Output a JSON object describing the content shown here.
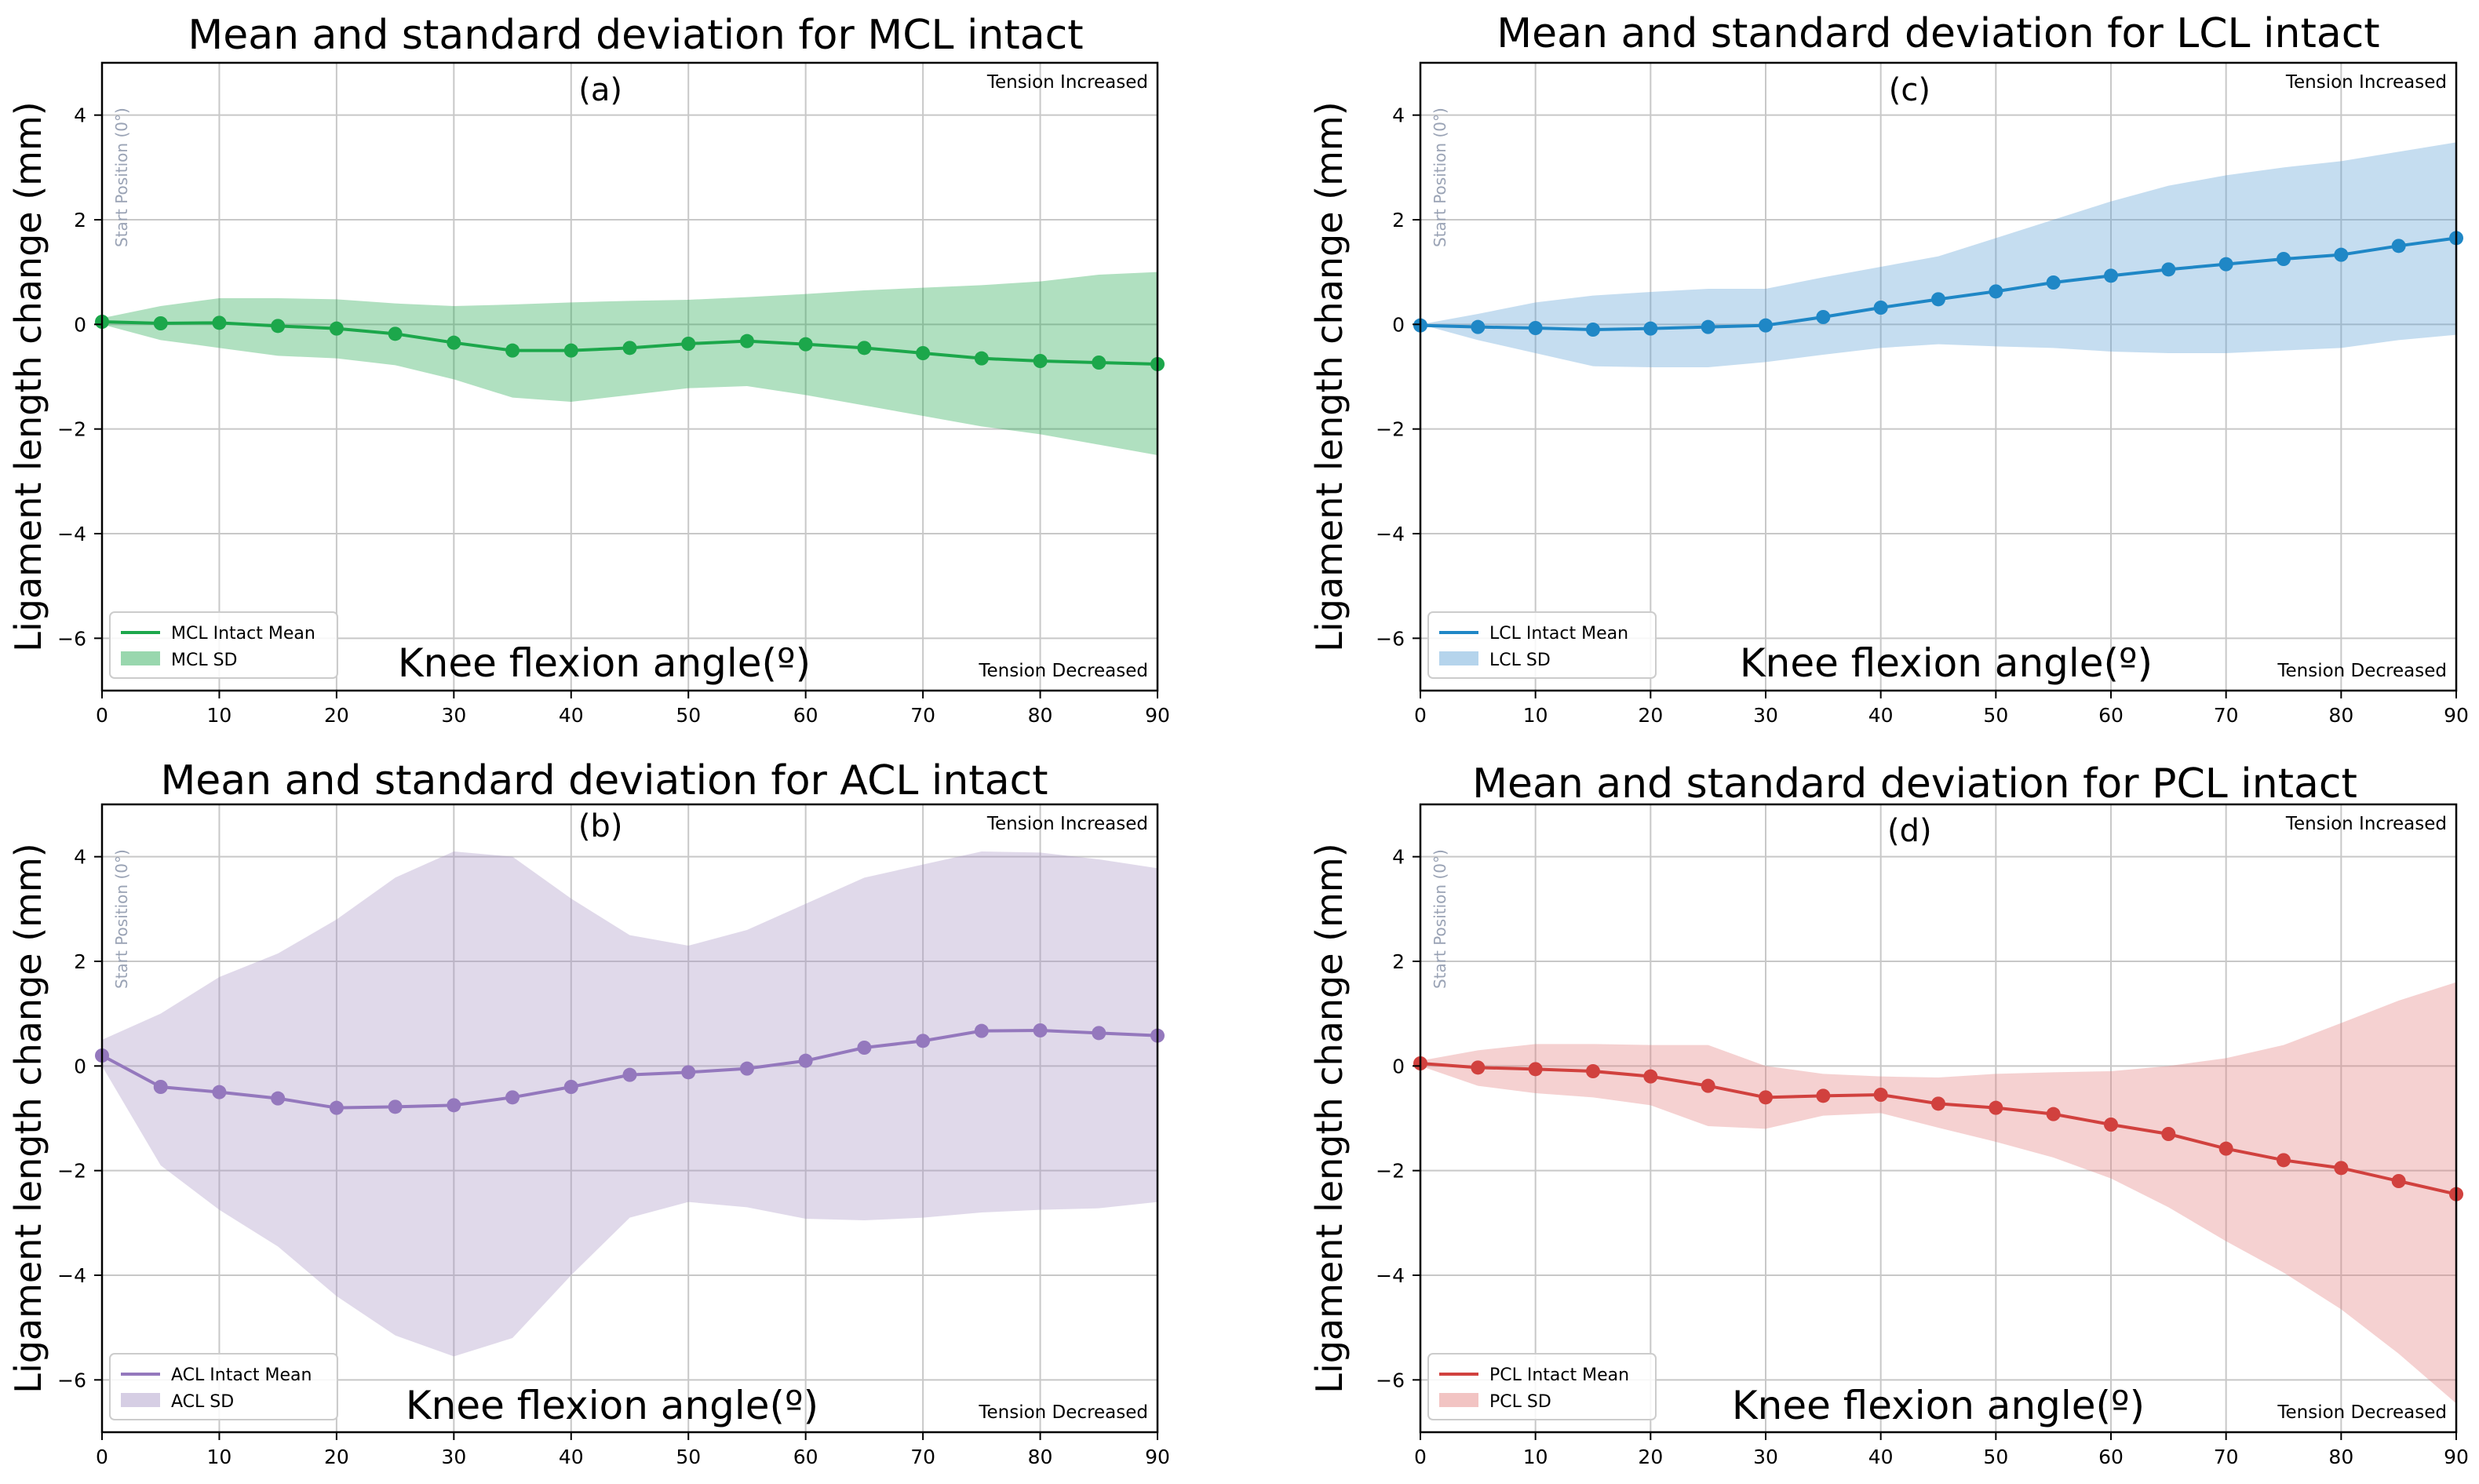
{
  "chart_data": [
    {
      "type": "line",
      "panel": "(a)",
      "title": "Mean and standard deviation for MCL intact",
      "xlabel": "Knee flexion angle(º)",
      "ylabel": "Ligament length change (mm)",
      "xlim": [
        0,
        90
      ],
      "ylim": [
        -7,
        5
      ],
      "xticks": [
        0,
        10,
        20,
        30,
        40,
        50,
        60,
        70,
        80,
        90
      ],
      "yticks": [
        -6,
        -4,
        -2,
        0,
        2,
        4
      ],
      "tick_labels_y": [
        "−6",
        "−4",
        "−2",
        "0",
        "2",
        "4"
      ],
      "color": "#1ca74b",
      "band_color": "#1ca74b",
      "start_label": "Start Position (0°)",
      "tension_increased": "Tension Increased",
      "tension_decreased": "Tension Decreased",
      "legend": {
        "mean": "MCL Intact Mean",
        "sd": "MCL SD",
        "position": "lower-left"
      },
      "x": [
        0,
        5,
        10,
        15,
        20,
        25,
        30,
        35,
        40,
        45,
        50,
        55,
        60,
        65,
        70,
        75,
        80,
        85,
        90
      ],
      "mean": [
        0.05,
        0.02,
        0.03,
        -0.03,
        -0.08,
        -0.18,
        -0.35,
        -0.5,
        -0.5,
        -0.45,
        -0.37,
        -0.32,
        -0.38,
        -0.45,
        -0.55,
        -0.65,
        -0.7,
        -0.73,
        -0.76
      ],
      "upper": [
        0.12,
        0.35,
        0.5,
        0.5,
        0.48,
        0.4,
        0.35,
        0.38,
        0.42,
        0.45,
        0.47,
        0.52,
        0.58,
        0.65,
        0.7,
        0.75,
        0.82,
        0.95,
        1.0
      ],
      "lower": [
        0.0,
        -0.3,
        -0.45,
        -0.6,
        -0.65,
        -0.78,
        -1.05,
        -1.4,
        -1.48,
        -1.35,
        -1.22,
        -1.18,
        -1.35,
        -1.55,
        -1.75,
        -1.95,
        -2.1,
        -2.3,
        -2.5
      ]
    },
    {
      "type": "line",
      "panel": "(c)",
      "title": "Mean and standard deviation for LCL intact",
      "xlabel": "Knee flexion angle(º)",
      "ylabel": "Ligament length change (mm)",
      "xlim": [
        0,
        90
      ],
      "ylim": [
        -7,
        5
      ],
      "xticks": [
        0,
        10,
        20,
        30,
        40,
        50,
        60,
        70,
        80,
        90
      ],
      "yticks": [
        -6,
        -4,
        -2,
        0,
        2,
        4
      ],
      "tick_labels_y": [
        "−6",
        "−4",
        "−2",
        "0",
        "2",
        "4"
      ],
      "color": "#1f87c6",
      "band_color": "#5a9fd4",
      "start_label": "Start Position (0°)",
      "tension_increased": "Tension Increased",
      "tension_decreased": "Tension Decreased",
      "legend": {
        "mean": "LCL Intact Mean",
        "sd": "LCL SD",
        "position": "lower-left"
      },
      "x": [
        0,
        5,
        10,
        15,
        20,
        25,
        30,
        35,
        40,
        45,
        50,
        55,
        60,
        65,
        70,
        75,
        80,
        85,
        90
      ],
      "mean": [
        -0.02,
        -0.05,
        -0.07,
        -0.1,
        -0.08,
        -0.05,
        -0.02,
        0.14,
        0.32,
        0.48,
        0.63,
        0.8,
        0.93,
        1.05,
        1.15,
        1.25,
        1.33,
        1.5,
        1.65
      ],
      "upper": [
        0.0,
        0.2,
        0.42,
        0.55,
        0.62,
        0.68,
        0.68,
        0.9,
        1.1,
        1.3,
        1.65,
        2.0,
        2.35,
        2.65,
        2.85,
        3.0,
        3.12,
        3.3,
        3.48
      ],
      "lower": [
        0.0,
        -0.3,
        -0.55,
        -0.8,
        -0.82,
        -0.82,
        -0.72,
        -0.58,
        -0.45,
        -0.38,
        -0.42,
        -0.45,
        -0.52,
        -0.55,
        -0.55,
        -0.5,
        -0.45,
        -0.3,
        -0.2
      ]
    },
    {
      "type": "line",
      "panel": "(b)",
      "title": "Mean and standard deviation for ACL intact",
      "xlabel": "Knee flexion angle(º)",
      "ylabel": "Ligament length change (mm)",
      "xlim": [
        0,
        90
      ],
      "ylim": [
        -7,
        5
      ],
      "xticks": [
        0,
        10,
        20,
        30,
        40,
        50,
        60,
        70,
        80,
        90
      ],
      "yticks": [
        -6,
        -4,
        -2,
        0,
        2,
        4
      ],
      "tick_labels_y": [
        "−6",
        "−4",
        "−2",
        "0",
        "2",
        "4"
      ],
      "color": "#9478bd",
      "band_color": "#a593c4",
      "start_label": "Start Position (0°)",
      "tension_increased": "Tension Increased",
      "tension_decreased": "Tension Decreased",
      "legend": {
        "mean": "ACL Intact Mean",
        "sd": "ACL SD",
        "position": "lower-left"
      },
      "x": [
        0,
        5,
        10,
        15,
        20,
        25,
        30,
        35,
        40,
        45,
        50,
        55,
        60,
        65,
        70,
        75,
        80,
        85,
        90
      ],
      "mean": [
        0.2,
        -0.4,
        -0.5,
        -0.62,
        -0.8,
        -0.78,
        -0.75,
        -0.6,
        -0.4,
        -0.17,
        -0.12,
        -0.05,
        0.1,
        0.35,
        0.48,
        0.67,
        0.68,
        0.63,
        0.58
      ],
      "upper": [
        0.5,
        1.0,
        1.7,
        2.15,
        2.8,
        3.6,
        4.1,
        4.0,
        3.2,
        2.5,
        2.3,
        2.6,
        3.1,
        3.6,
        3.85,
        4.1,
        4.08,
        3.95,
        3.78
      ],
      "lower": [
        0.0,
        -1.9,
        -2.75,
        -3.45,
        -4.4,
        -5.15,
        -5.55,
        -5.2,
        -4.0,
        -2.9,
        -2.6,
        -2.7,
        -2.92,
        -2.95,
        -2.9,
        -2.8,
        -2.75,
        -2.72,
        -2.6
      ]
    },
    {
      "type": "line",
      "panel": "(d)",
      "title": "Mean and standard deviation for PCL intact",
      "xlabel": "Knee flexion angle(º)",
      "ylabel": "Ligament length change (mm)",
      "xlim": [
        0,
        90
      ],
      "ylim": [
        -7,
        5
      ],
      "xticks": [
        0,
        10,
        20,
        30,
        40,
        50,
        60,
        70,
        80,
        90
      ],
      "yticks": [
        -6,
        -4,
        -2,
        0,
        2,
        4
      ],
      "tick_labels_y": [
        "−6",
        "−4",
        "−2",
        "0",
        "2",
        "4"
      ],
      "color": "#d1413e",
      "band_color": "#e27c7b",
      "start_label": "Start Position (0°)",
      "tension_increased": "Tension Increased",
      "tension_decreased": "Tension Decreased",
      "legend": {
        "mean": "PCL Intact Mean",
        "sd": "PCL SD",
        "position": "lower-left"
      },
      "x": [
        0,
        5,
        10,
        15,
        20,
        25,
        30,
        35,
        40,
        45,
        50,
        55,
        60,
        65,
        70,
        75,
        80,
        85,
        90
      ],
      "mean": [
        0.05,
        -0.03,
        -0.06,
        -0.1,
        -0.2,
        -0.38,
        -0.6,
        -0.57,
        -0.55,
        -0.72,
        -0.8,
        -0.92,
        -1.12,
        -1.3,
        -1.58,
        -1.8,
        -1.95,
        -2.2,
        -2.45
      ],
      "upper": [
        0.1,
        0.3,
        0.42,
        0.42,
        0.4,
        0.4,
        0.0,
        -0.15,
        -0.2,
        -0.22,
        -0.15,
        -0.12,
        -0.1,
        0.0,
        0.15,
        0.4,
        0.82,
        1.25,
        1.6
      ],
      "lower": [
        0.0,
        -0.38,
        -0.52,
        -0.6,
        -0.75,
        -1.15,
        -1.2,
        -0.95,
        -0.9,
        -1.18,
        -1.45,
        -1.75,
        -2.15,
        -2.7,
        -3.35,
        -3.95,
        -4.65,
        -5.5,
        -6.45
      ]
    }
  ]
}
